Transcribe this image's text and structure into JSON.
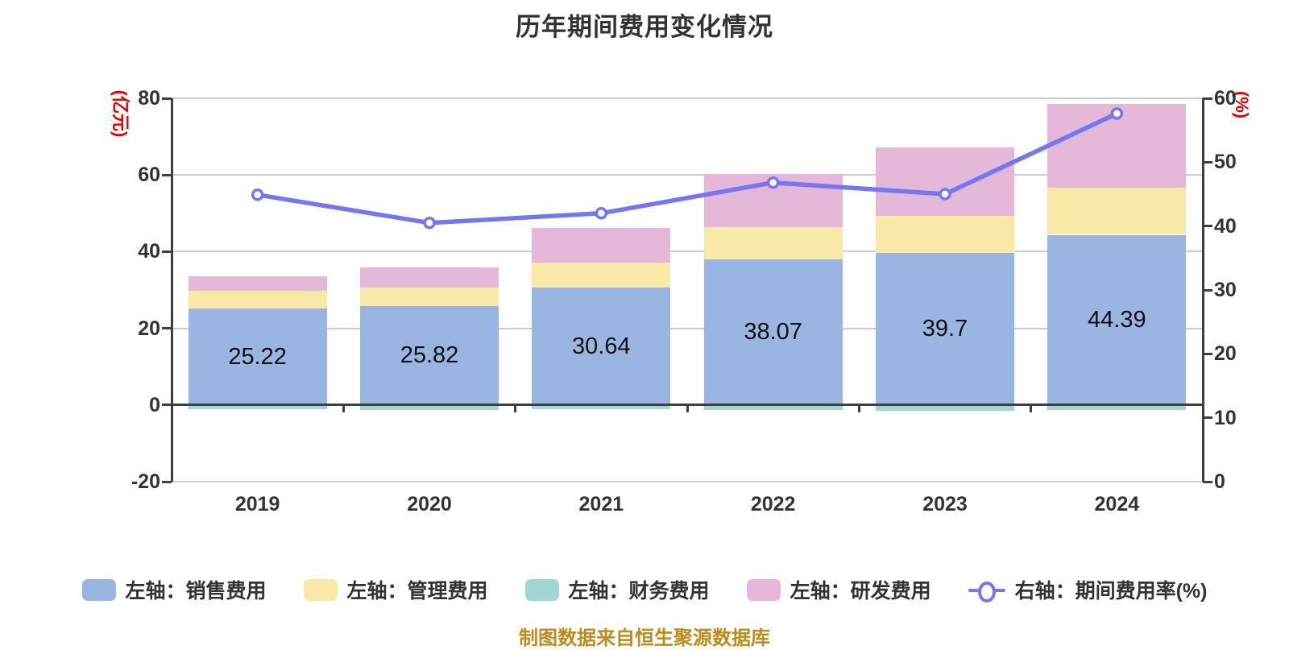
{
  "title": "历年期间费用变化情况",
  "footer": "制图数据来自恒生聚源数据库",
  "left_axis": {
    "unit": "(亿元)",
    "ticks": [
      80,
      60,
      40,
      20,
      0,
      -20
    ],
    "min": -20,
    "max": 80
  },
  "right_axis": {
    "unit": "(%)",
    "ticks": [
      60,
      50,
      40,
      30,
      20,
      10,
      0
    ],
    "min": 0,
    "max": 60
  },
  "colors": {
    "title": "#333333",
    "axis_line": "#3f3f3f",
    "grid_line": "#cccccc",
    "axis_unit_red": "#e60000",
    "bar_label": "#111111",
    "footer_gold": "#bd8b1e",
    "sales_blue": "#9ab5e2",
    "admin_yellow": "#f8e9a9",
    "finance_teal": "#a2d6d0",
    "rd_pink": "#e5b8d9",
    "ratio_line_purple": "#7577f0",
    "ratio_dot_fill": "#ffffff"
  },
  "chart_data": {
    "type": "bar",
    "subtype": "stacked bars (left axis) + line (right axis)",
    "categories": [
      "2019",
      "2020",
      "2021",
      "2022",
      "2023",
      "2024"
    ],
    "grid": "horizontal gridlines at left-axis ticks, behind bars",
    "legend_position": "bottom",
    "series": [
      {
        "key": "sales",
        "name": "左轴：销售费用",
        "type": "bar",
        "axis": "left",
        "color": "#9ab5e2",
        "values": [
          25.22,
          25.82,
          30.64,
          38.07,
          39.7,
          44.39
        ]
      },
      {
        "key": "admin",
        "name": "左轴：管理费用",
        "type": "bar",
        "axis": "left",
        "color": "#f8e9a9",
        "values": [
          4.6,
          4.9,
          6.4,
          8.4,
          9.7,
          12.2
        ]
      },
      {
        "key": "finance",
        "name": "左轴：财务费用",
        "type": "bar",
        "axis": "left",
        "color": "#a2d6d0",
        "values": [
          -1.0,
          -1.2,
          -1.1,
          -1.3,
          -1.5,
          -1.3
        ]
      },
      {
        "key": "rd",
        "name": "左轴：研发费用",
        "type": "bar",
        "axis": "left",
        "color": "#e5b8d9",
        "values": [
          3.8,
          5.1,
          9.2,
          13.8,
          17.7,
          21.9
        ]
      },
      {
        "key": "expense-ratio",
        "name": "右轴：期间费用率(%)",
        "type": "line",
        "axis": "right",
        "color": "#7577f0",
        "values": [
          44.9,
          40.5,
          42.0,
          46.8,
          45.0,
          57.6
        ]
      }
    ],
    "bar_labels": [
      "25.22",
      "25.82",
      "30.64",
      "38.07",
      "39.7",
      "44.39"
    ],
    "bar_labels_series": "sales",
    "ylim_left": [
      -20,
      80
    ],
    "ylim_right": [
      0,
      60
    ]
  }
}
